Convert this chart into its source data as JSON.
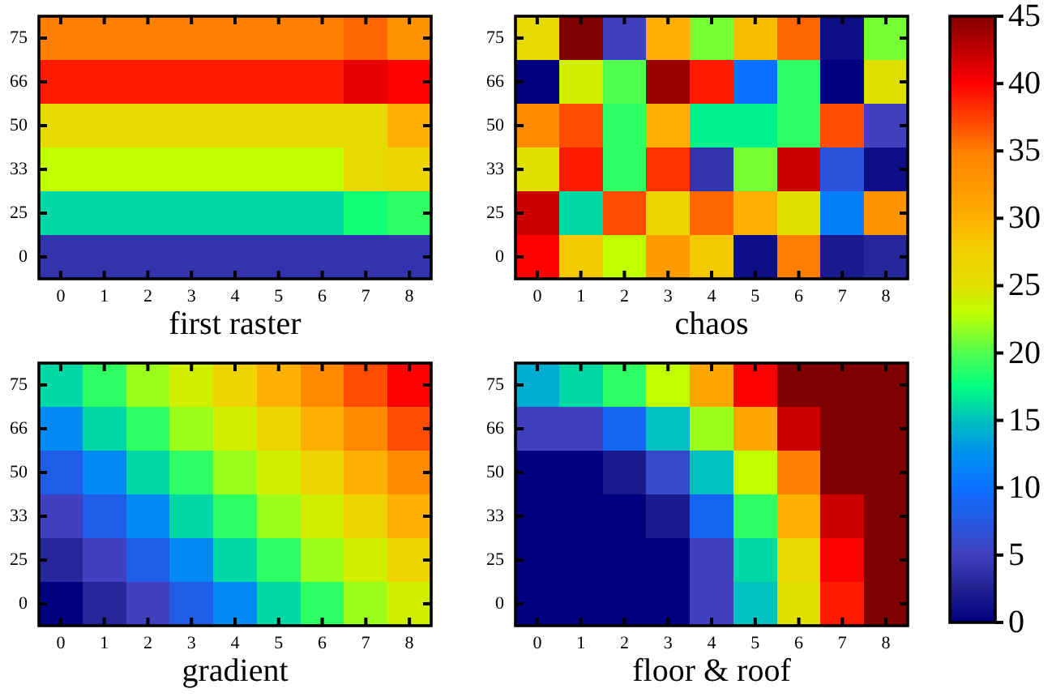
{
  "chart_data": [
    {
      "type": "heatmap",
      "xlabel": "first raster",
      "categories": [
        "0",
        "1",
        "2",
        "3",
        "4",
        "5",
        "6",
        "7",
        "8"
      ],
      "y_categories": [
        "75",
        "66",
        "50",
        "33",
        "25",
        "0"
      ],
      "clim": [
        0,
        45
      ],
      "cticks": [
        0,
        20,
        40
      ],
      "cells": [
        [
          35,
          35,
          35,
          35,
          35,
          35,
          35,
          36,
          33
        ],
        [
          39,
          39,
          39,
          39,
          39,
          39,
          39,
          41,
          40
        ],
        [
          26,
          26,
          26,
          26,
          26,
          26,
          26,
          26,
          30
        ],
        [
          23,
          23,
          23,
          23,
          23,
          23,
          23,
          26,
          27
        ],
        [
          16,
          16,
          16,
          16,
          16,
          16,
          16,
          18,
          19
        ],
        [
          4,
          4,
          4,
          4,
          4,
          4,
          4,
          4,
          4
        ]
      ]
    },
    {
      "type": "heatmap",
      "xlabel": "chaos",
      "categories": [
        "0",
        "1",
        "2",
        "3",
        "4",
        "5",
        "6",
        "7",
        "8"
      ],
      "y_categories": [
        "75",
        "66",
        "50",
        "33",
        "25",
        "0"
      ],
      "clim": [
        0,
        45
      ],
      "cticks": [
        5,
        25,
        45
      ],
      "cells": [
        [
          26,
          45,
          5,
          30,
          21,
          29,
          36,
          1,
          21
        ],
        [
          0,
          24,
          20,
          44,
          39,
          10,
          19,
          0,
          25
        ],
        [
          34,
          37,
          19,
          30,
          17,
          17,
          19,
          37,
          5
        ],
        [
          25,
          39,
          19,
          38,
          4,
          21,
          42,
          7,
          1
        ],
        [
          42,
          16,
          37,
          27,
          36,
          30,
          25,
          11,
          33
        ],
        [
          40,
          28,
          23,
          32,
          28,
          1,
          35,
          2,
          3
        ]
      ]
    },
    {
      "type": "heatmap",
      "xlabel": "gradient",
      "categories": [
        "0",
        "1",
        "2",
        "3",
        "4",
        "5",
        "6",
        "7",
        "8"
      ],
      "y_categories": [
        "75",
        "66",
        "50",
        "33",
        "25",
        "0"
      ],
      "clim": [
        0,
        45
      ],
      "cticks": [
        10,
        30
      ],
      "cells": [
        [
          16,
          19,
          22,
          24,
          27,
          30,
          34,
          37,
          40
        ],
        [
          12,
          16,
          19,
          22,
          24,
          27,
          30,
          34,
          37
        ],
        [
          8,
          12,
          16,
          19,
          22,
          24,
          27,
          30,
          34
        ],
        [
          5,
          8,
          12,
          16,
          19,
          22,
          24,
          27,
          30
        ],
        [
          3,
          5,
          8,
          12,
          16,
          19,
          22,
          24,
          27
        ],
        [
          0,
          3,
          5,
          8,
          12,
          16,
          19,
          22,
          24
        ]
      ]
    },
    {
      "type": "heatmap",
      "xlabel": "floor & roof",
      "categories": [
        "0",
        "1",
        "2",
        "3",
        "4",
        "5",
        "6",
        "7",
        "8"
      ],
      "y_categories": [
        "75",
        "66",
        "50",
        "33",
        "25",
        "0"
      ],
      "clim": [
        0,
        45
      ],
      "cticks": [
        15,
        35
      ],
      "cells": [
        [
          14,
          16,
          19,
          23,
          31,
          40,
          45,
          45,
          45
        ],
        [
          5,
          5,
          9,
          15,
          22,
          31,
          42,
          45,
          45
        ],
        [
          0,
          0,
          2,
          6,
          15,
          23,
          35,
          45,
          45
        ],
        [
          0,
          0,
          0,
          2,
          9,
          19,
          30,
          42,
          45
        ],
        [
          0,
          0,
          0,
          0,
          5,
          16,
          26,
          40,
          45
        ],
        [
          0,
          0,
          0,
          0,
          5,
          15,
          25,
          39,
          45
        ]
      ]
    }
  ]
}
